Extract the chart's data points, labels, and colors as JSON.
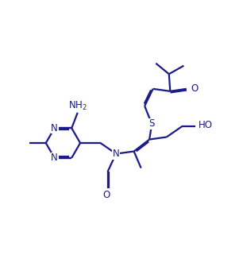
{
  "background": "#ffffff",
  "line_color": "#1a1a8c",
  "text_color": "#1a1a8c",
  "bond_lw": 1.6,
  "font_size": 8.5,
  "figsize": [
    3.06,
    3.21
  ],
  "dpi": 100,
  "xlim": [
    0.0,
    10.0
  ],
  "ylim": [
    1.5,
    9.5
  ]
}
